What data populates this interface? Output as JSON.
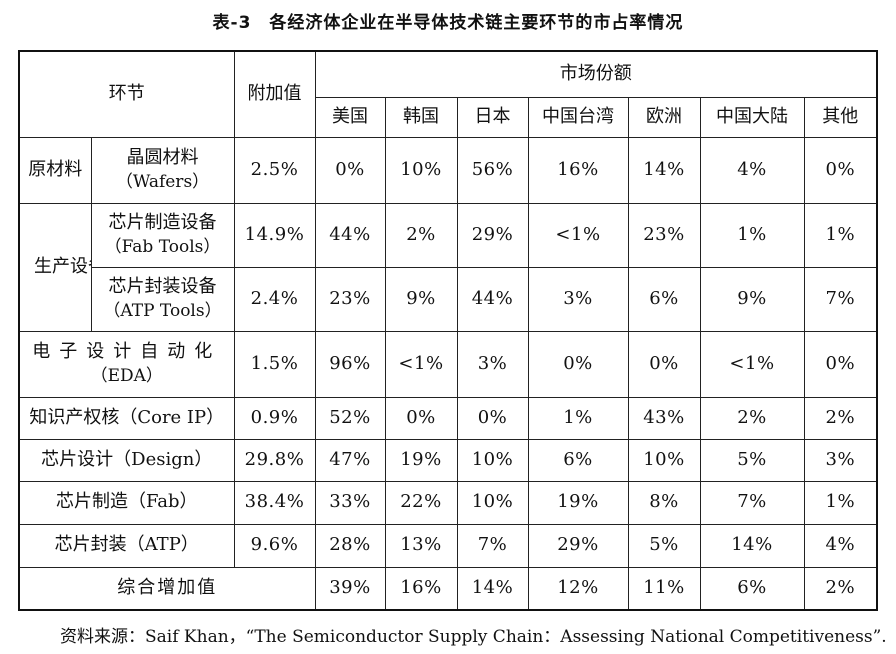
{
  "title": "表-3　各经济体企业在半导体技术链主要环节的市占率情况",
  "header": {
    "segment": "环节",
    "value_added": "附加值",
    "market_share": "市场份额",
    "regions": [
      "美国",
      "韩国",
      "日本",
      "中国台湾",
      "欧洲",
      "中国大陆",
      "其他"
    ]
  },
  "rows": [
    {
      "group": "原材料",
      "name": "晶圆材料",
      "name_en": "（Wafers）",
      "added": "2.5%",
      "values": [
        "0%",
        "10%",
        "56%",
        "16%",
        "14%",
        "4%",
        "0%"
      ]
    },
    {
      "group": "生产设备",
      "name": "芯片制造设备",
      "name_en": "（Fab Tools）",
      "added": "14.9%",
      "values": [
        "44%",
        "2%",
        "29%",
        "<1%",
        "23%",
        "1%",
        "1%"
      ]
    },
    {
      "group": "",
      "name": "芯片封装设备",
      "name_en": "（ATP Tools）",
      "added": "2.4%",
      "values": [
        "23%",
        "9%",
        "44%",
        "3%",
        "6%",
        "9%",
        "7%"
      ]
    },
    {
      "name": "电子设计自动化",
      "name_en": "（EDA）",
      "added": "1.5%",
      "values": [
        "96%",
        "<1%",
        "3%",
        "0%",
        "0%",
        "<1%",
        "0%"
      ]
    },
    {
      "name": "知识产权核（Core IP）",
      "added": "0.9%",
      "values": [
        "52%",
        "0%",
        "0%",
        "1%",
        "43%",
        "2%",
        "2%"
      ]
    },
    {
      "name": "芯片设计（Design）",
      "added": "29.8%",
      "values": [
        "47%",
        "19%",
        "10%",
        "6%",
        "10%",
        "5%",
        "3%"
      ]
    },
    {
      "name": "芯片制造（Fab）",
      "added": "38.4%",
      "values": [
        "33%",
        "22%",
        "10%",
        "19%",
        "8%",
        "7%",
        "1%"
      ]
    },
    {
      "name": "芯片封装（ATP）",
      "added": "9.6%",
      "values": [
        "28%",
        "13%",
        "7%",
        "29%",
        "5%",
        "14%",
        "4%"
      ]
    }
  ],
  "total": {
    "label": "综合增加值",
    "values": [
      "39%",
      "16%",
      "14%",
      "12%",
      "11%",
      "6%",
      "2%"
    ]
  },
  "source": "资料来源：Saif Khan，“The Semiconductor Supply Chain：Assessing National Competitiveness”."
}
